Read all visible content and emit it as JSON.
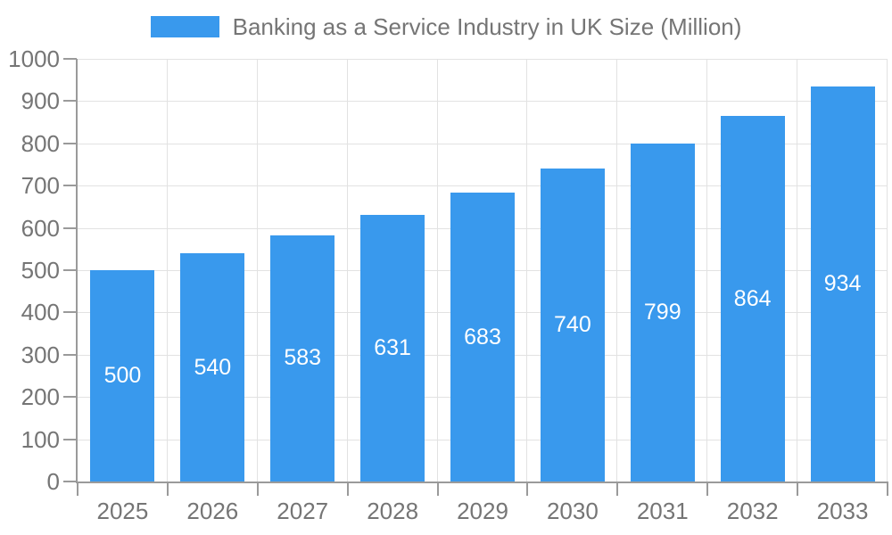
{
  "colors": {
    "bar": "#3999ED",
    "axis": "#9A9A9A",
    "grid": "#E2E2E2",
    "text": "#757575",
    "value_label": "#FFFFFF"
  },
  "legend": {
    "label": "Banking as a Service Industry in UK Size (Million)"
  },
  "chart_data": {
    "type": "bar",
    "title": "Banking as a Service Industry in UK Size (Million)",
    "categories": [
      "2025",
      "2026",
      "2027",
      "2028",
      "2029",
      "2030",
      "2031",
      "2032",
      "2033"
    ],
    "values": [
      500,
      540,
      583,
      631,
      683,
      740,
      799,
      864,
      934
    ],
    "xlabel": "",
    "ylabel": "",
    "ylim": [
      0,
      1000
    ],
    "y_ticks": [
      0,
      100,
      200,
      300,
      400,
      500,
      600,
      700,
      800,
      900,
      1000
    ],
    "grid": "on",
    "legend_position": "top",
    "value_label_position": "inside-center"
  }
}
